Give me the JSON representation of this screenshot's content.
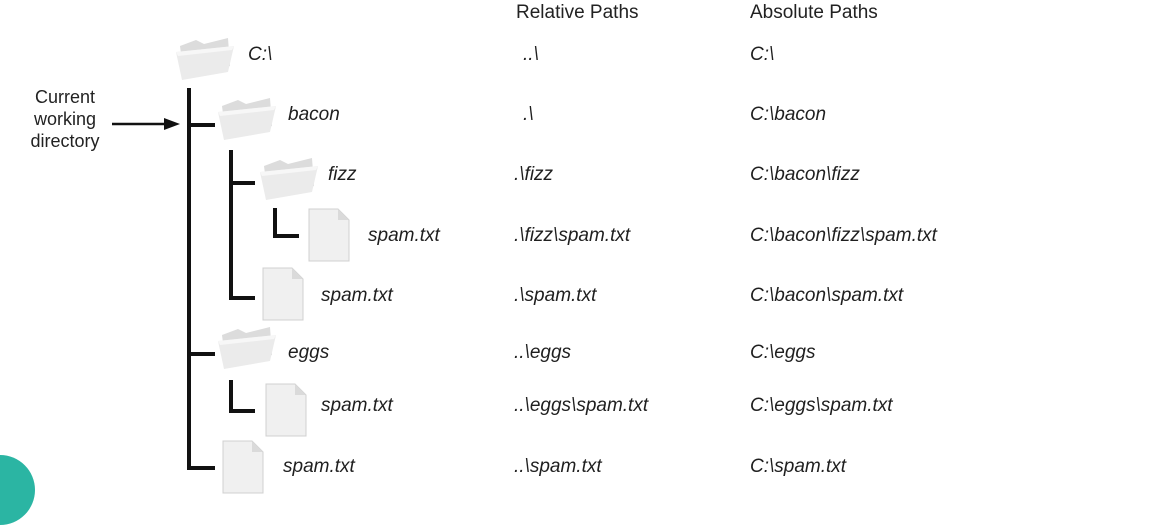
{
  "headers": {
    "relative": "Relative Paths",
    "absolute": "Absolute Paths"
  },
  "annotation": {
    "line1": "Current",
    "line2": "working",
    "line3": "directory"
  },
  "rows": [
    {
      "name": "C:\\",
      "type": "folder",
      "relative": "..\\",
      "absolute": "C:\\"
    },
    {
      "name": "bacon",
      "type": "folder",
      "relative": ".\\",
      "absolute": "C:\\bacon"
    },
    {
      "name": "fizz",
      "type": "folder",
      "relative": ".\\fizz",
      "absolute": "C:\\bacon\\fizz"
    },
    {
      "name": "spam.txt",
      "type": "file",
      "relative": ".\\fizz\\spam.txt",
      "absolute": "C:\\bacon\\fizz\\spam.txt"
    },
    {
      "name": "spam.txt",
      "type": "file",
      "relative": ".\\spam.txt",
      "absolute": "C:\\bacon\\spam.txt"
    },
    {
      "name": "eggs",
      "type": "folder",
      "relative": "..\\eggs",
      "absolute": "C:\\eggs"
    },
    {
      "name": "spam.txt",
      "type": "file",
      "relative": "..\\eggs\\spam.txt",
      "absolute": "C:\\eggs\\spam.txt"
    },
    {
      "name": "spam.txt",
      "type": "file",
      "relative": "..\\spam.txt",
      "absolute": "C:\\spam.txt"
    }
  ]
}
